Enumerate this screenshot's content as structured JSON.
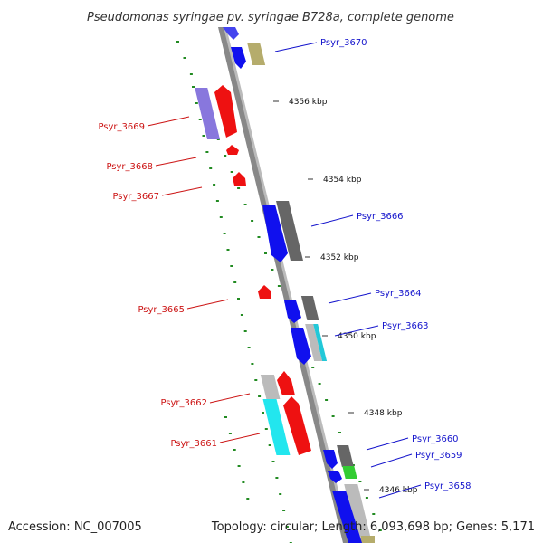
{
  "title": "Pseudomonas syringae pv. syringae B728a, complete genome",
  "accession": "Accession: NC_007005",
  "topology": "Topology: circular; Length: 6,093,698 bp; Genes: 5,171",
  "ticks": [
    "4356 kbp",
    "4354 kbp",
    "4352 kbp",
    "4350 kbp",
    "4348 kbp",
    "4346 kbp"
  ],
  "genes": [
    {
      "name": "Psyr_3670",
      "strand": "+"
    },
    {
      "name": "Psyr_3669",
      "strand": "-"
    },
    {
      "name": "Psyr_3668",
      "strand": "-"
    },
    {
      "name": "Psyr_3667",
      "strand": "-"
    },
    {
      "name": "Psyr_3666",
      "strand": "+"
    },
    {
      "name": "Psyr_3665",
      "strand": "-"
    },
    {
      "name": "Psyr_3664",
      "strand": "+"
    },
    {
      "name": "Psyr_3663",
      "strand": "+"
    },
    {
      "name": "Psyr_3662",
      "strand": "-"
    },
    {
      "name": "Psyr_3661",
      "strand": "-"
    },
    {
      "name": "Psyr_3660",
      "strand": "+"
    },
    {
      "name": "Psyr_3659",
      "strand": "+"
    },
    {
      "name": "Psyr_3658",
      "strand": "+"
    }
  ],
  "colors": {
    "forward_cds": "#1010ee",
    "reverse_cds": "#ee1111",
    "forward_label": "#1414cc",
    "reverse_label": "#cc1414",
    "backbone": "#888888",
    "scale_dots": "#228b22",
    "cog_grey": "#666666",
    "cog_olive": "#b5ac6c",
    "cog_lavender": "#8877dd",
    "cog_cyan": "#22e6ee",
    "cog_green": "#33cc33",
    "cog_light_grey": "#bbbbbb"
  }
}
